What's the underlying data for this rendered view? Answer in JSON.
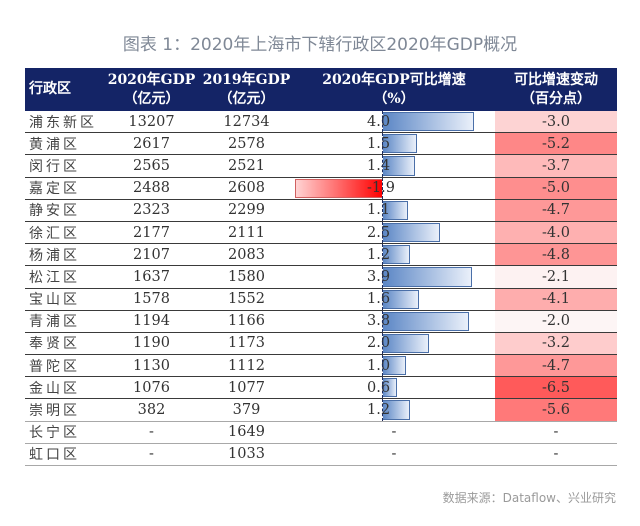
{
  "title": "图表 1：2020年上海市下辖行政区2020年GDP概况",
  "source": "数据来源：Dataflow、兴业研究",
  "colors": {
    "header_bg": "#142466",
    "positive_bar": "#5b86c5",
    "negative_bar": "#ff0000",
    "change_scale_low": "#fdf5f5",
    "change_scale_high": "#ff5a5a"
  },
  "table": {
    "headers": [
      {
        "line1": "行政区",
        "line2": ""
      },
      {
        "line1": "2020年GDP",
        "line2": "（亿元）"
      },
      {
        "line1": "2019年GDP",
        "line2": "（亿元）"
      },
      {
        "line1": "2020年GDP可比增速",
        "line2": "（%）"
      },
      {
        "line1": "可比增速变动",
        "line2": "（百分点）"
      }
    ],
    "rows": [
      {
        "district": "浦东新区",
        "gdp2020": "13207",
        "gdp2019": "12734",
        "growth": "4.0",
        "change": "-3.0"
      },
      {
        "district": "黄浦区",
        "gdp2020": "2617",
        "gdp2019": "2578",
        "growth": "1.5",
        "change": "-5.2"
      },
      {
        "district": "闵行区",
        "gdp2020": "2565",
        "gdp2019": "2521",
        "growth": "1.4",
        "change": "-3.7"
      },
      {
        "district": "嘉定区",
        "gdp2020": "2488",
        "gdp2019": "2608",
        "growth": "-1.9",
        "change": "-5.0"
      },
      {
        "district": "静安区",
        "gdp2020": "2323",
        "gdp2019": "2299",
        "growth": "1.1",
        "change": "-4.7"
      },
      {
        "district": "徐汇区",
        "gdp2020": "2177",
        "gdp2019": "2111",
        "growth": "2.5",
        "change": "-4.0"
      },
      {
        "district": "杨浦区",
        "gdp2020": "2107",
        "gdp2019": "2083",
        "growth": "1.2",
        "change": "-4.8"
      },
      {
        "district": "松江区",
        "gdp2020": "1637",
        "gdp2019": "1580",
        "growth": "3.9",
        "change": "-2.1"
      },
      {
        "district": "宝山区",
        "gdp2020": "1578",
        "gdp2019": "1552",
        "growth": "1.6",
        "change": "-4.1"
      },
      {
        "district": "青浦区",
        "gdp2020": "1194",
        "gdp2019": "1166",
        "growth": "3.8",
        "change": "-2.0"
      },
      {
        "district": "奉贤区",
        "gdp2020": "1190",
        "gdp2019": "1173",
        "growth": "2.0",
        "change": "-3.2"
      },
      {
        "district": "普陀区",
        "gdp2020": "1130",
        "gdp2019": "1112",
        "growth": "1.0",
        "change": "-4.7"
      },
      {
        "district": "金山区",
        "gdp2020": "1076",
        "gdp2019": "1077",
        "growth": "0.6",
        "change": "-6.5"
      },
      {
        "district": "崇明区",
        "gdp2020": "382",
        "gdp2019": "379",
        "growth": "1.2",
        "change": "-5.6"
      },
      {
        "district": "长宁区",
        "gdp2020": "-",
        "gdp2019": "1649",
        "growth": "-",
        "change": "-"
      },
      {
        "district": "虹口区",
        "gdp2020": "-",
        "gdp2019": "1033",
        "growth": "-",
        "change": "-"
      }
    ]
  },
  "chart_data": {
    "type": "table",
    "title": "图表 1：2020年上海市下辖行政区2020年GDP概况",
    "columns": [
      "行政区",
      "2020年GDP（亿元）",
      "2019年GDP（亿元）",
      "2020年GDP可比增速（%）",
      "可比增速变动（百分点）"
    ],
    "categories": [
      "浦东新区",
      "黄浦区",
      "闵行区",
      "嘉定区",
      "静安区",
      "徐汇区",
      "杨浦区",
      "松江区",
      "宝山区",
      "青浦区",
      "奉贤区",
      "普陀区",
      "金山区",
      "崇明区",
      "长宁区",
      "虹口区"
    ],
    "series": [
      {
        "name": "2020年GDP（亿元）",
        "values": [
          13207,
          2617,
          2565,
          2488,
          2323,
          2177,
          2107,
          1637,
          1578,
          1194,
          1190,
          1130,
          1076,
          382,
          null,
          null
        ]
      },
      {
        "name": "2019年GDP（亿元）",
        "values": [
          12734,
          2578,
          2521,
          2608,
          2299,
          2111,
          2083,
          1580,
          1552,
          1166,
          1173,
          1112,
          1077,
          379,
          1649,
          1033
        ]
      },
      {
        "name": "2020年GDP可比增速（%）",
        "values": [
          4.0,
          1.5,
          1.4,
          -1.9,
          1.1,
          2.5,
          1.2,
          3.9,
          1.6,
          3.8,
          2.0,
          1.0,
          0.6,
          1.2,
          null,
          null
        ],
        "display": "data-bar"
      },
      {
        "name": "可比增速变动（百分点）",
        "values": [
          -3.0,
          -5.2,
          -3.7,
          -5.0,
          -4.7,
          -4.0,
          -4.8,
          -2.1,
          -4.1,
          -2.0,
          -3.2,
          -4.7,
          -6.5,
          -5.6,
          null,
          null
        ],
        "display": "color-scale"
      }
    ],
    "source": "数据来源：Dataflow、兴业研究"
  }
}
